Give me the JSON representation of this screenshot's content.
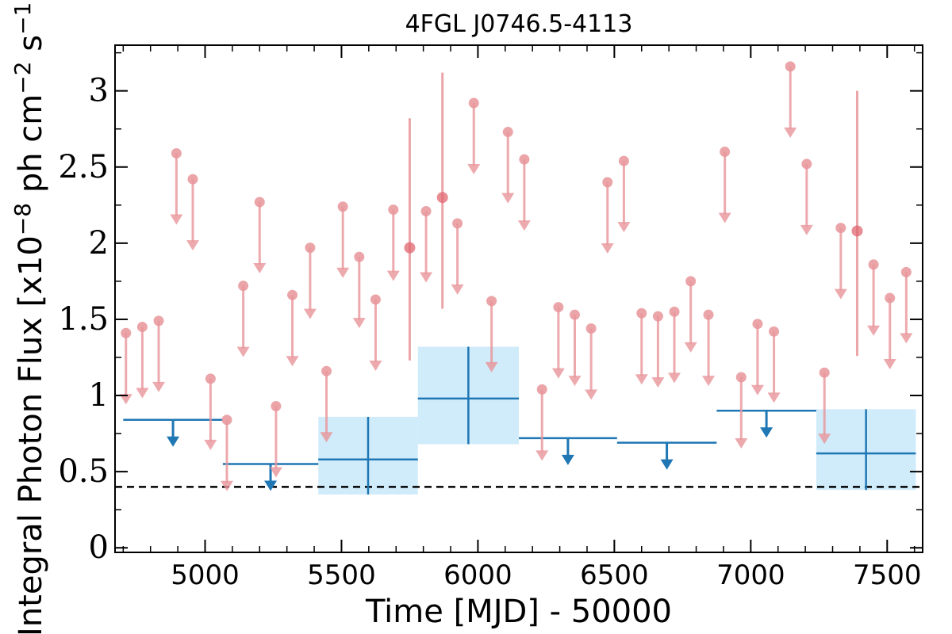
{
  "chart_data": {
    "type": "scatter",
    "title": "4FGL J0746.5-4113",
    "xlabel": "Time [MJD] - 50000",
    "ylabel": "Integral Photon Flux [x10",
    "ylabel_exp1": "−8",
    "ylabel_mid": " ph cm",
    "ylabel_exp2": "−2",
    "ylabel_mid2": " s",
    "ylabel_exp3": "−1",
    "ylabel_end": "]",
    "xlim": [
      4670,
      7630
    ],
    "ylim": [
      -0.03,
      3.3
    ],
    "xticks": [
      5000,
      5500,
      6000,
      6500,
      7000,
      7500
    ],
    "xtick_labels": [
      "5000",
      "5500",
      "6000",
      "6500",
      "7000",
      "7500"
    ],
    "yticks": [
      0,
      0.5,
      1,
      1.5,
      2,
      2.5,
      3
    ],
    "ytick_labels": [
      "0",
      "0.5",
      "1",
      "1.5",
      "2",
      "2.5",
      "3"
    ],
    "colors": {
      "monthly": "#e8959a",
      "monthly_detection": "#e06670",
      "yearly": "#1f77b4",
      "yearly_band": "#a9ddf7",
      "reference_line": "#000000"
    },
    "reference_level": 0.4,
    "monthly_upper_limits": [
      {
        "x": 4710,
        "y": 1.41
      },
      {
        "x": 4770,
        "y": 1.45
      },
      {
        "x": 4830,
        "y": 1.49
      },
      {
        "x": 4895,
        "y": 2.59
      },
      {
        "x": 4955,
        "y": 2.42
      },
      {
        "x": 5020,
        "y": 1.11
      },
      {
        "x": 5080,
        "y": 0.84
      },
      {
        "x": 5140,
        "y": 1.72
      },
      {
        "x": 5200,
        "y": 2.27
      },
      {
        "x": 5260,
        "y": 0.93
      },
      {
        "x": 5320,
        "y": 1.66
      },
      {
        "x": 5385,
        "y": 1.97
      },
      {
        "x": 5445,
        "y": 1.16
      },
      {
        "x": 5505,
        "y": 2.24
      },
      {
        "x": 5565,
        "y": 1.91
      },
      {
        "x": 5625,
        "y": 1.63
      },
      {
        "x": 5690,
        "y": 2.22
      },
      {
        "x": 5810,
        "y": 2.21
      },
      {
        "x": 5925,
        "y": 2.13
      },
      {
        "x": 5985,
        "y": 2.92
      },
      {
        "x": 6050,
        "y": 1.62
      },
      {
        "x": 6110,
        "y": 2.73
      },
      {
        "x": 6170,
        "y": 2.55
      },
      {
        "x": 6235,
        "y": 1.04
      },
      {
        "x": 6295,
        "y": 1.58
      },
      {
        "x": 6355,
        "y": 1.53
      },
      {
        "x": 6415,
        "y": 1.44
      },
      {
        "x": 6475,
        "y": 2.4
      },
      {
        "x": 6535,
        "y": 2.54
      },
      {
        "x": 6600,
        "y": 1.54
      },
      {
        "x": 6660,
        "y": 1.52
      },
      {
        "x": 6720,
        "y": 1.55
      },
      {
        "x": 6780,
        "y": 1.75
      },
      {
        "x": 6845,
        "y": 1.53
      },
      {
        "x": 6905,
        "y": 2.6
      },
      {
        "x": 6965,
        "y": 1.12
      },
      {
        "x": 7025,
        "y": 1.47
      },
      {
        "x": 7085,
        "y": 1.42
      },
      {
        "x": 7145,
        "y": 3.16
      },
      {
        "x": 7205,
        "y": 2.52
      },
      {
        "x": 7270,
        "y": 1.15
      },
      {
        "x": 7330,
        "y": 2.1
      },
      {
        "x": 7450,
        "y": 1.86
      },
      {
        "x": 7510,
        "y": 1.64
      },
      {
        "x": 7570,
        "y": 1.81
      }
    ],
    "monthly_detections": [
      {
        "x": 5750,
        "y": 1.97,
        "ylow": 1.23,
        "yhigh": 2.82
      },
      {
        "x": 5870,
        "y": 2.3,
        "ylow": 1.57,
        "yhigh": 3.12
      },
      {
        "x": 7390,
        "y": 2.08,
        "ylow": 1.26,
        "yhigh": 3.0
      }
    ],
    "yearly_upper_limits": [
      {
        "x0": 4700,
        "x1": 5065,
        "y": 0.84
      },
      {
        "x0": 5065,
        "x1": 5415,
        "y": 0.55
      },
      {
        "x0": 6150,
        "x1": 6510,
        "y": 0.72
      },
      {
        "x0": 6510,
        "x1": 6875,
        "y": 0.69
      },
      {
        "x0": 6875,
        "x1": 7240,
        "y": 0.9
      }
    ],
    "yearly_detections": [
      {
        "x0": 5415,
        "x1": 5780,
        "y": 0.58,
        "ylow": 0.35,
        "yhigh": 0.86
      },
      {
        "x0": 5780,
        "x1": 6150,
        "y": 0.98,
        "ylow": 0.68,
        "yhigh": 1.32
      },
      {
        "x0": 7240,
        "x1": 7605,
        "y": 0.62,
        "ylow": 0.38,
        "yhigh": 0.91
      }
    ]
  }
}
